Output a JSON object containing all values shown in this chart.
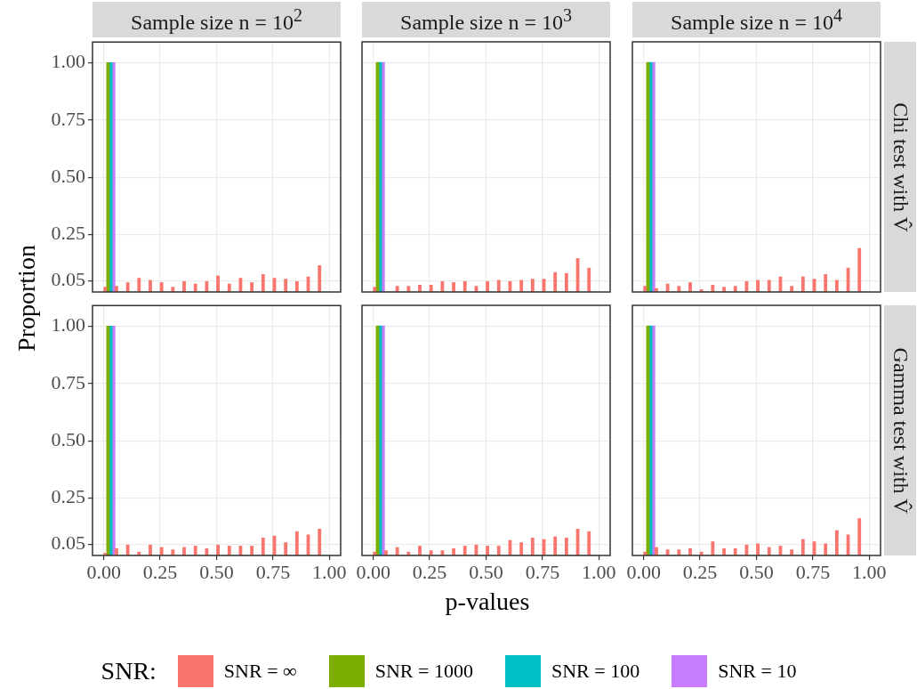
{
  "chart_data": [
    {
      "type": "histogram",
      "title": "Sample size n = 10$^{2}$",
      "ylabel": "Proportion",
      "legend": "bottom",
      "legend_title": "SNR:",
      "bins": [
        0,
        0.05,
        0.1,
        0.15,
        0.2,
        0.25,
        0.3,
        0.35,
        0.4,
        0.45,
        0.5,
        0.55,
        0.6,
        0.65,
        0.7,
        0.75,
        0.8,
        0.85,
        0.9,
        0.95,
        1
      ],
      "xlim": [
        -0.05,
        1.05
      ],
      "xticks": [
        0,
        0.25,
        0.5,
        0.75,
        1
      ],
      "ylim": [
        0,
        1.09
      ],
      "yticks": [
        {
          "value": 0.05,
          "label": "0.05"
        },
        {
          "value": 0.25,
          "label": "0.25"
        },
        {
          "value": 0.5,
          "label": "0.50"
        },
        {
          "value": 0.75,
          "label": "0.75"
        },
        {
          "value": 1,
          "label": "1.00"
        }
      ],
      "grid": true,
      "tick_labels": "y",
      "series": [
        {
          "name": "SNR = ∞",
          "color": "#f8766d",
          "values": [
            0.021,
            0.025,
            0.041,
            0.06,
            0.051,
            0.041,
            0.021,
            0.046,
            0.035,
            0.046,
            0.07,
            0.035,
            0.06,
            0.041,
            0.076,
            0.06,
            0.056,
            0.046,
            0.066,
            0.115
          ]
        },
        {
          "name": "SNR = 1000",
          "color": "#7cae00",
          "values": [
            1,
            0,
            0,
            0,
            0,
            0,
            0,
            0,
            0,
            0,
            0,
            0,
            0,
            0,
            0,
            0,
            0,
            0,
            0,
            0
          ]
        },
        {
          "name": "SNR = 100",
          "color": "#00bfc4",
          "values": [
            1,
            0,
            0,
            0,
            0,
            0,
            0,
            0,
            0,
            0,
            0,
            0,
            0,
            0,
            0,
            0,
            0,
            0,
            0,
            0
          ]
        },
        {
          "name": "SNR = 10",
          "color": "#c77cff",
          "values": [
            1,
            0,
            0,
            0,
            0,
            0,
            0,
            0,
            0,
            0,
            0,
            0,
            0,
            0,
            0,
            0,
            0,
            0,
            0,
            0
          ]
        }
      ]
    },
    {
      "type": "histogram",
      "title": "Sample size n = 10$^{3}$",
      "bins": [
        0,
        0.05,
        0.1,
        0.15,
        0.2,
        0.25,
        0.3,
        0.35,
        0.4,
        0.45,
        0.5,
        0.55,
        0.6,
        0.65,
        0.7,
        0.75,
        0.8,
        0.85,
        0.9,
        0.95,
        1
      ],
      "xlim": [
        -0.05,
        1.05
      ],
      "xticks": [
        0,
        0.25,
        0.5,
        0.75,
        1
      ],
      "ylim": [
        0,
        1.09
      ],
      "yticks": [
        0.05,
        0.25,
        0.5,
        0.75,
        1
      ],
      "grid": true,
      "tick_labels": false,
      "series": [
        {
          "color": "#f8766d",
          "values": [
            0.021,
            0,
            0.025,
            0.025,
            0.03,
            0.03,
            0.046,
            0.041,
            0.046,
            0.025,
            0.046,
            0.051,
            0.046,
            0.051,
            0.056,
            0.056,
            0.085,
            0.081,
            0.146,
            0.104
          ]
        },
        {
          "color": "#7cae00",
          "values": [
            1,
            0,
            0,
            0,
            0,
            0,
            0,
            0,
            0,
            0,
            0,
            0,
            0,
            0,
            0,
            0,
            0,
            0,
            0,
            0
          ]
        },
        {
          "color": "#00bfc4",
          "values": [
            1,
            0,
            0,
            0,
            0,
            0,
            0,
            0,
            0,
            0,
            0,
            0,
            0,
            0,
            0,
            0,
            0,
            0,
            0,
            0
          ]
        },
        {
          "color": "#c77cff",
          "values": [
            1,
            0,
            0,
            0,
            0,
            0,
            0,
            0,
            0,
            0,
            0,
            0,
            0,
            0,
            0,
            0,
            0,
            0,
            0,
            0
          ]
        }
      ]
    },
    {
      "type": "histogram",
      "title": "Sample size n = 10$^{4}$",
      "y2label": "Chi test with V̂",
      "bins": [
        0,
        0.05,
        0.1,
        0.15,
        0.2,
        0.25,
        0.3,
        0.35,
        0.4,
        0.45,
        0.5,
        0.55,
        0.6,
        0.65,
        0.7,
        0.75,
        0.8,
        0.85,
        0.9,
        0.95,
        1
      ],
      "xlim": [
        -0.05,
        1.05
      ],
      "xticks": [
        0,
        0.25,
        0.5,
        0.75,
        1
      ],
      "ylim": [
        0,
        1.09
      ],
      "yticks": [
        0.05,
        0.25,
        0.5,
        0.75,
        1
      ],
      "grid": true,
      "tick_labels": false,
      "series": [
        {
          "color": "#f8766d",
          "values": [
            0.025,
            0.015,
            0.035,
            0.025,
            0.041,
            0.01,
            0.03,
            0.021,
            0.025,
            0.046,
            0.051,
            0.051,
            0.066,
            0.025,
            0.066,
            0.056,
            0.076,
            0.051,
            0.104,
            0.19
          ]
        },
        {
          "color": "#7cae00",
          "values": [
            1,
            0,
            0,
            0,
            0,
            0,
            0,
            0,
            0,
            0,
            0,
            0,
            0,
            0,
            0,
            0,
            0,
            0,
            0,
            0
          ]
        },
        {
          "color": "#00bfc4",
          "values": [
            1,
            0,
            0,
            0,
            0,
            0,
            0,
            0,
            0,
            0,
            0,
            0,
            0,
            0,
            0,
            0,
            0,
            0,
            0,
            0
          ]
        },
        {
          "color": "#c77cff",
          "values": [
            1,
            0,
            0,
            0,
            0,
            0,
            0,
            0,
            0,
            0,
            0,
            0,
            0,
            0,
            0,
            0,
            0,
            0,
            0,
            0
          ]
        }
      ]
    },
    {
      "type": "histogram",
      "bins": [
        0,
        0.05,
        0.1,
        0.15,
        0.2,
        0.25,
        0.3,
        0.35,
        0.4,
        0.45,
        0.5,
        0.55,
        0.6,
        0.65,
        0.7,
        0.75,
        0.8,
        0.85,
        0.9,
        0.95,
        1
      ],
      "xlim": [
        -0.05,
        1.05
      ],
      "xticks": [
        {
          "value": 0,
          "label": "0.00"
        },
        {
          "value": 0.25,
          "label": "0.25"
        },
        {
          "value": 0.5,
          "label": "0.50"
        },
        {
          "value": 0.75,
          "label": "0.75"
        },
        {
          "value": 1,
          "label": "1.00"
        }
      ],
      "ylim": [
        0,
        1.09
      ],
      "yticks": [
        {
          "value": 0.05,
          "label": "0.05"
        },
        {
          "value": 0.25,
          "label": "0.25"
        },
        {
          "value": 0.5,
          "label": "0.50"
        },
        {
          "value": 0.75,
          "label": "0.75"
        },
        {
          "value": 1,
          "label": "1.00"
        }
      ],
      "grid": true,
      "series": [
        {
          "color": "#f8766d",
          "values": [
            0.01,
            0.03,
            0.046,
            0.015,
            0.046,
            0.035,
            0.025,
            0.035,
            0.041,
            0.03,
            0.046,
            0.041,
            0.041,
            0.041,
            0.076,
            0.085,
            0.056,
            0.104,
            0.09,
            0.115
          ]
        },
        {
          "color": "#7cae00",
          "values": [
            1,
            0,
            0,
            0,
            0,
            0,
            0,
            0,
            0,
            0,
            0,
            0,
            0,
            0,
            0,
            0,
            0,
            0,
            0,
            0
          ]
        },
        {
          "color": "#00bfc4",
          "values": [
            1,
            0,
            0,
            0,
            0,
            0,
            0,
            0,
            0,
            0,
            0,
            0,
            0,
            0,
            0,
            0,
            0,
            0,
            0,
            0
          ]
        },
        {
          "color": "#c77cff",
          "values": [
            1,
            0,
            0,
            0,
            0,
            0,
            0,
            0,
            0,
            0,
            0,
            0,
            0,
            0,
            0,
            0,
            0,
            0,
            0,
            0
          ]
        }
      ]
    },
    {
      "type": "histogram",
      "xlabel": "p-values",
      "bins": [
        0,
        0.05,
        0.1,
        0.15,
        0.2,
        0.25,
        0.3,
        0.35,
        0.4,
        0.45,
        0.5,
        0.55,
        0.6,
        0.65,
        0.7,
        0.75,
        0.8,
        0.85,
        0.9,
        0.95,
        1
      ],
      "xlim": [
        -0.05,
        1.05
      ],
      "xticks": [
        {
          "value": 0,
          "label": "0.00"
        },
        {
          "value": 0.25,
          "label": "0.25"
        },
        {
          "value": 0.5,
          "label": "0.50"
        },
        {
          "value": 0.75,
          "label": "0.75"
        },
        {
          "value": 1,
          "label": "1.00"
        }
      ],
      "ylim": [
        0,
        1.09
      ],
      "yticks": [
        0.05,
        0.25,
        0.5,
        0.75,
        1
      ],
      "grid": true,
      "tick_labels": "x",
      "series": [
        {
          "color": "#f8766d",
          "values": [
            0.015,
            0.021,
            0.035,
            0.015,
            0.041,
            0.021,
            0.021,
            0.03,
            0.041,
            0.046,
            0.041,
            0.041,
            0.066,
            0.056,
            0.076,
            0.07,
            0.081,
            0.076,
            0.115,
            0.104
          ]
        },
        {
          "color": "#7cae00",
          "values": [
            1,
            0,
            0,
            0,
            0,
            0,
            0,
            0,
            0,
            0,
            0,
            0,
            0,
            0,
            0,
            0,
            0,
            0,
            0,
            0
          ]
        },
        {
          "color": "#00bfc4",
          "values": [
            1,
            0,
            0,
            0,
            0,
            0,
            0,
            0,
            0,
            0,
            0,
            0,
            0,
            0,
            0,
            0,
            0,
            0,
            0,
            0
          ]
        },
        {
          "color": "#c77cff",
          "values": [
            1,
            0,
            0,
            0,
            0,
            0,
            0,
            0,
            0,
            0,
            0,
            0,
            0,
            0,
            0,
            0,
            0,
            0,
            0,
            0
          ]
        }
      ]
    },
    {
      "type": "histogram",
      "y2label": "Gamma test with V̂",
      "bins": [
        0,
        0.05,
        0.1,
        0.15,
        0.2,
        0.25,
        0.3,
        0.35,
        0.4,
        0.45,
        0.5,
        0.55,
        0.6,
        0.65,
        0.7,
        0.75,
        0.8,
        0.85,
        0.9,
        0.95,
        1
      ],
      "xlim": [
        -0.05,
        1.05
      ],
      "xticks": [
        {
          "value": 0,
          "label": "0.00"
        },
        {
          "value": 0.25,
          "label": "0.25"
        },
        {
          "value": 0.5,
          "label": "0.50"
        },
        {
          "value": 0.75,
          "label": "0.75"
        },
        {
          "value": 1,
          "label": "1.00"
        }
      ],
      "ylim": [
        0,
        1.09
      ],
      "yticks": [
        0.05,
        0.25,
        0.5,
        0.75,
        1
      ],
      "grid": true,
      "tick_labels": "x",
      "series": [
        {
          "color": "#f8766d",
          "values": [
            0.015,
            0.035,
            0.025,
            0.025,
            0.03,
            0.015,
            0.06,
            0.03,
            0.03,
            0.046,
            0.051,
            0.035,
            0.041,
            0.025,
            0.07,
            0.06,
            0.051,
            0.109,
            0.09,
            0.161
          ]
        },
        {
          "color": "#7cae00",
          "values": [
            1,
            0,
            0,
            0,
            0,
            0,
            0,
            0,
            0,
            0,
            0,
            0,
            0,
            0,
            0,
            0,
            0,
            0,
            0,
            0
          ]
        },
        {
          "color": "#00bfc4",
          "values": [
            1,
            0,
            0,
            0,
            0,
            0,
            0,
            0,
            0,
            0,
            0,
            0,
            0,
            0,
            0,
            0,
            0,
            0,
            0,
            0
          ]
        },
        {
          "color": "#c77cff",
          "values": [
            1,
            0,
            0,
            0,
            0,
            0,
            0,
            0,
            0,
            0,
            0,
            0,
            0,
            0,
            0,
            0,
            0,
            0,
            0,
            0
          ]
        }
      ]
    }
  ]
}
